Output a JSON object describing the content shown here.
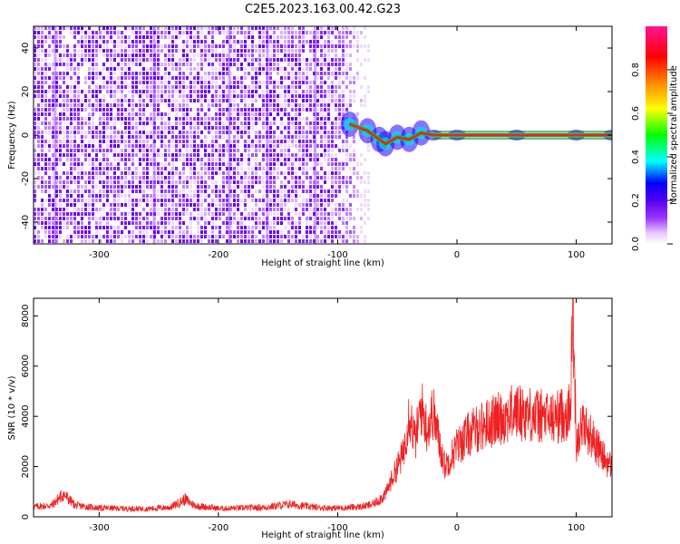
{
  "figure_title": "C2E5.2023.163.00.42.G23",
  "chart_data": [
    {
      "type": "heatmap",
      "xlabel": "Height of straight line (km)",
      "ylabel": "Frequency (Hz)",
      "xlim": [
        -355,
        130
      ],
      "ylim": [
        -50,
        50
      ],
      "x_ticks": [
        -300,
        -200,
        -100,
        0,
        100
      ],
      "y_ticks": [
        -40,
        -20,
        0,
        20,
        40
      ],
      "colorbar": {
        "label": "Normalized spectral amplitude",
        "range": [
          0,
          1
        ],
        "ticks": [
          "0.0",
          "0.2",
          "0.4",
          "0.6",
          "0.8"
        ],
        "colormap": [
          "#ffffff",
          "#e8c8ff",
          "#9933ff",
          "#5500ee",
          "#0000ff",
          "#00ffff",
          "#00ff00",
          "#ffff00",
          "#ff8800",
          "#ff0000",
          "#ff1493"
        ]
      },
      "noise_region": {
        "x_range": [
          -355,
          -75
        ],
        "amplitude": "low (0.0-0.1)"
      },
      "signal_track": [
        {
          "x": -90,
          "y": 5
        },
        {
          "x": -75,
          "y": 2
        },
        {
          "x": -65,
          "y": -2
        },
        {
          "x": -60,
          "y": -4
        },
        {
          "x": -50,
          "y": -1
        },
        {
          "x": -40,
          "y": -2
        },
        {
          "x": -30,
          "y": 1
        },
        {
          "x": -20,
          "y": 0
        },
        {
          "x": 0,
          "y": 0
        },
        {
          "x": 50,
          "y": 0
        },
        {
          "x": 100,
          "y": 0
        },
        {
          "x": 130,
          "y": 0
        }
      ],
      "line_color": "#0c5c2c"
    },
    {
      "type": "line",
      "xlabel": "Height of straight line (km)",
      "ylabel": "SNR (10 * v/v)",
      "xlim": [
        -355,
        130
      ],
      "ylim": [
        0,
        8700
      ],
      "x_ticks": [
        -300,
        -200,
        -100,
        0,
        100
      ],
      "y_ticks": [
        0,
        2000,
        4000,
        6000,
        8000
      ],
      "series": [
        {
          "color": "#ee2222",
          "x": [
            -355,
            -340,
            -330,
            -320,
            -300,
            -280,
            -260,
            -240,
            -228,
            -220,
            -200,
            -180,
            -160,
            -140,
            -120,
            -100,
            -80,
            -70,
            -60,
            -50,
            -45,
            -40,
            -35,
            -30,
            -25,
            -20,
            -15,
            -10,
            -5,
            0,
            10,
            20,
            30,
            40,
            50,
            60,
            70,
            80,
            90,
            95,
            97,
            100,
            105,
            110,
            115,
            120,
            125,
            130
          ],
          "values": [
            400,
            450,
            900,
            450,
            350,
            330,
            320,
            380,
            700,
            450,
            330,
            350,
            380,
            500,
            380,
            350,
            400,
            500,
            900,
            2000,
            2500,
            4200,
            3000,
            4400,
            3500,
            4200,
            3000,
            2000,
            2400,
            2800,
            3300,
            3600,
            3800,
            4000,
            4200,
            4100,
            4000,
            3900,
            4100,
            4200,
            8500,
            3000,
            3700,
            3400,
            3000,
            2600,
            2200,
            2000
          ]
        }
      ]
    }
  ]
}
